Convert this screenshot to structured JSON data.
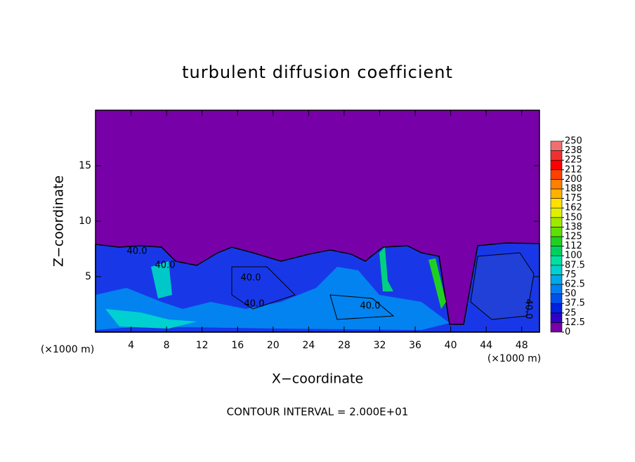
{
  "chart_data": {
    "type": "contour",
    "title": "turbulent diffusion coefficient",
    "x_label": "X−coordinate",
    "y_label": "Z−coordinate",
    "x_unit": "(×1000 m)",
    "y_unit": "(×1000 m)",
    "footnote": "CONTOUR INTERVAL = 2.000E+01",
    "contour_labels": [
      "40.0",
      "40.0",
      "40.0",
      "40.0",
      "40.0",
      "40.0"
    ],
    "xlim": [
      0,
      50
    ],
    "xticks": [
      4,
      8,
      12,
      16,
      20,
      24,
      28,
      32,
      36,
      40,
      44,
      48
    ],
    "ylim": [
      0,
      20
    ],
    "yticks": [
      5,
      10,
      15
    ],
    "colorbar_ticks": [
      0,
      12.5,
      25,
      37.5,
      50,
      62.5,
      75,
      87.5,
      100,
      {
        "value": 112.5,
        "label": "112"
      },
      125,
      {
        "value": 137.5,
        "label": "138"
      },
      150,
      {
        "value": 162.5,
        "label": "162"
      },
      175,
      {
        "value": 187.5,
        "label": "188"
      },
      200,
      {
        "value": 212.5,
        "label": "212"
      },
      225,
      {
        "value": 237.5,
        "label": "238"
      },
      250
    ],
    "colorbar_colors": [
      "#7800a8",
      "#3000c8",
      "#0020e0",
      "#0050f0",
      "#0080f0",
      "#00a8e8",
      "#00d0d0",
      "#00e0a0",
      "#00d060",
      "#20d020",
      "#60e000",
      "#a0e800",
      "#e0f000",
      "#ffe000",
      "#ffb000",
      "#ff8000",
      "#ff4000",
      "#ff0000",
      "#f03030",
      "#f07070"
    ]
  }
}
